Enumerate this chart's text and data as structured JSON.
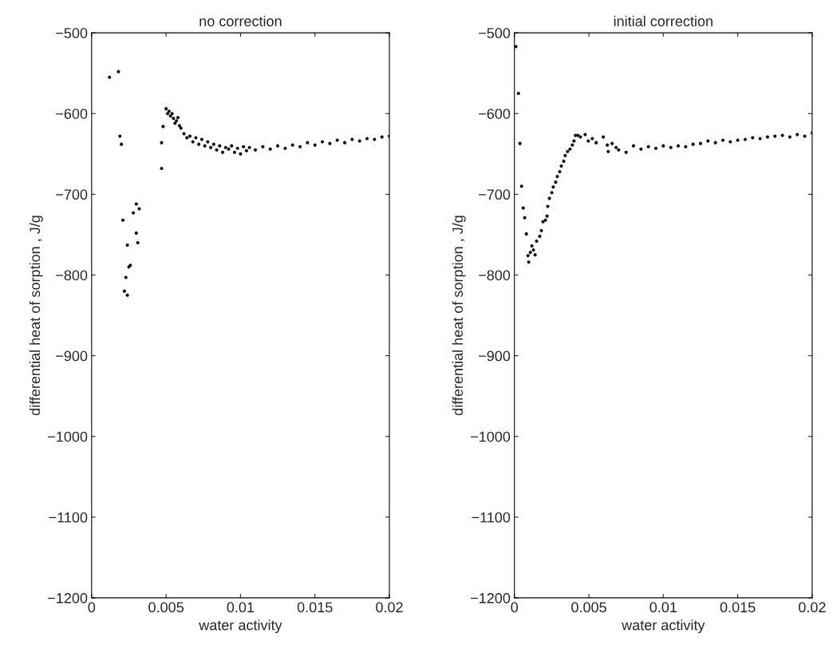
{
  "chart_data": [
    {
      "type": "scatter",
      "title": "no correction",
      "xlabel": "water activity",
      "ylabel": "differential heat of sorption , J/g",
      "xlim": [
        0,
        0.02
      ],
      "ylim": [
        -1200,
        -500
      ],
      "xticks": [
        0,
        {
          "value": 0.005,
          "label": "0.005"
        },
        {
          "value": 0.01,
          "label": "0.01"
        },
        {
          "value": 0.015,
          "label": "0.015"
        },
        {
          "value": 0.02,
          "label": "0.02"
        }
      ],
      "yticks": [
        -1200,
        -1100,
        -1000,
        -900,
        -800,
        -700,
        -600,
        -500
      ],
      "grid": false,
      "legend": false,
      "marker": "circle",
      "series": [
        {
          "color": "#111111",
          "x": [
            0.0012,
            0.0018,
            0.0019,
            0.002,
            0.0021,
            0.0022,
            0.0024,
            0.0023,
            0.0024,
            0.0025,
            0.0026,
            0.0028,
            0.003,
            0.003,
            0.0031,
            0.0032,
            0.0047,
            0.0047,
            0.0048,
            0.005,
            0.0051,
            0.0052,
            0.0053,
            0.0054,
            0.0055,
            0.0056,
            0.0057,
            0.0058,
            0.0059,
            0.006,
            0.0062,
            0.0064,
            0.0066,
            0.0068,
            0.007,
            0.0072,
            0.0074,
            0.0076,
            0.0078,
            0.008,
            0.0082,
            0.0084,
            0.0086,
            0.0088,
            0.009,
            0.0092,
            0.0094,
            0.0096,
            0.0098,
            0.01,
            0.0102,
            0.0104,
            0.0106,
            0.011,
            0.0115,
            0.012,
            0.0125,
            0.013,
            0.0135,
            0.014,
            0.0145,
            0.015,
            0.0155,
            0.016,
            0.0165,
            0.017,
            0.0175,
            0.018,
            0.0185,
            0.019,
            0.0195,
            0.02
          ],
          "values": [
            -555,
            -548,
            -628,
            -638,
            -732,
            -820,
            -825,
            -803,
            -763,
            -790,
            -788,
            -723,
            -712,
            -748,
            -760,
            -718,
            -668,
            -636,
            -616,
            -594,
            -600,
            -597,
            -603,
            -600,
            -606,
            -612,
            -609,
            -605,
            -615,
            -618,
            -625,
            -630,
            -628,
            -635,
            -630,
            -638,
            -632,
            -640,
            -635,
            -642,
            -638,
            -645,
            -640,
            -648,
            -642,
            -644,
            -640,
            -648,
            -643,
            -650,
            -641,
            -646,
            -642,
            -645,
            -641,
            -644,
            -640,
            -643,
            -639,
            -641,
            -636,
            -639,
            -635,
            -637,
            -633,
            -636,
            -632,
            -634,
            -631,
            -632,
            -629,
            -628
          ]
        }
      ]
    },
    {
      "type": "scatter",
      "title": "initial correction",
      "xlabel": "water activity",
      "ylabel": "differential heat of sorption , J/g",
      "xlim": [
        0,
        0.02
      ],
      "ylim": [
        -1200,
        -500
      ],
      "xticks": [
        0,
        {
          "value": 0.005,
          "label": "0.005"
        },
        {
          "value": 0.01,
          "label": "0.01"
        },
        {
          "value": 0.015,
          "label": "0.015"
        },
        {
          "value": 0.02,
          "label": "0.02"
        }
      ],
      "yticks": [
        -1200,
        -1100,
        -1000,
        -900,
        -800,
        -700,
        -600,
        -500
      ],
      "grid": false,
      "legend": false,
      "marker": "circle",
      "series": [
        {
          "color": "#111111",
          "x": [
            0.0001,
            0.00027,
            0.00037,
            0.00048,
            0.00059,
            0.00069,
            0.0008,
            0.00091,
            0.00096,
            0.00107,
            0.00117,
            0.00128,
            0.00139,
            0.00149,
            0.0017,
            0.00181,
            0.00192,
            0.00208,
            0.00219,
            0.00224,
            0.00235,
            0.00251,
            0.00261,
            0.00277,
            0.00288,
            0.00304,
            0.00315,
            0.00331,
            0.00341,
            0.00357,
            0.00373,
            0.00389,
            0.004,
            0.0041,
            0.00427,
            0.00443,
            0.00475,
            0.00496,
            0.00523,
            0.00549,
            0.00597,
            0.00624,
            0.0063,
            0.00656,
            0.00683,
            0.007,
            0.0075,
            0.008,
            0.0085,
            0.009,
            0.0095,
            0.01,
            0.0105,
            0.011,
            0.0115,
            0.012,
            0.0125,
            0.013,
            0.0135,
            0.014,
            0.0145,
            0.015,
            0.0155,
            0.016,
            0.0165,
            0.017,
            0.0175,
            0.018,
            0.0185,
            0.019,
            0.0195,
            0.02
          ],
          "values": [
            -517,
            -575,
            -637,
            -690,
            -717,
            -729,
            -749,
            -776,
            -784,
            -772,
            -764,
            -769,
            -775,
            -758,
            -752,
            -745,
            -734,
            -732,
            -727,
            -715,
            -705,
            -698,
            -691,
            -685,
            -678,
            -672,
            -665,
            -659,
            -652,
            -647,
            -644,
            -639,
            -634,
            -627,
            -627,
            -629,
            -626,
            -634,
            -631,
            -636,
            -629,
            -639,
            -647,
            -637,
            -642,
            -645,
            -648,
            -640,
            -644,
            -641,
            -643,
            -640,
            -642,
            -640,
            -641,
            -638,
            -637,
            -634,
            -636,
            -633,
            -635,
            -633,
            -632,
            -630,
            -631,
            -629,
            -628,
            -627,
            -629,
            -626,
            -628,
            -624
          ]
        }
      ]
    }
  ]
}
